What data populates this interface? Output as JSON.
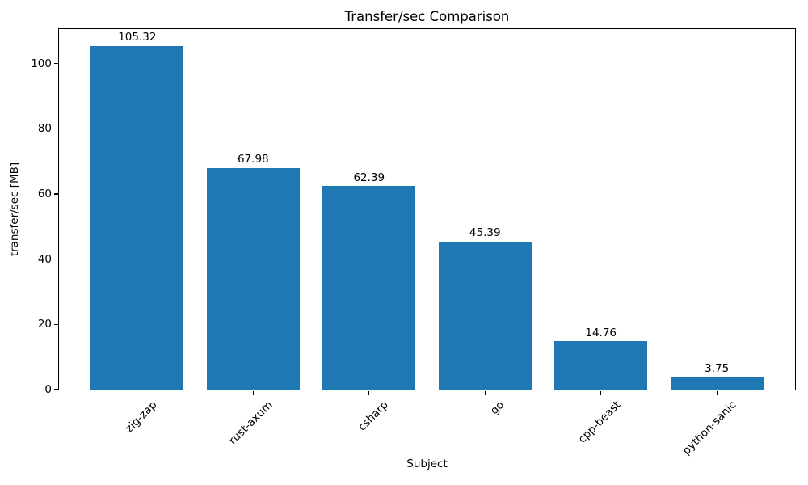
{
  "chart_data": {
    "type": "bar",
    "title": "Transfer/sec Comparison",
    "xlabel": "Subject",
    "ylabel": "transfer/sec [MB]",
    "categories": [
      "zig-zap",
      "rust-axum",
      "csharp",
      "go",
      "cpp-beast",
      "python-sanic"
    ],
    "values": [
      105.32,
      67.98,
      62.39,
      45.39,
      14.76,
      3.75
    ],
    "value_labels": [
      "105.32",
      "67.98",
      "62.39",
      "45.39",
      "14.76",
      "3.75"
    ],
    "yticks": [
      0,
      20,
      40,
      60,
      80,
      100
    ],
    "ylim": [
      0,
      110.59
    ],
    "xtick_rotation_deg": 45,
    "grid": false,
    "legend_position": "none",
    "bar_color": "#1f77b4",
    "text_color": "#000000",
    "spine_color": "#000000"
  }
}
